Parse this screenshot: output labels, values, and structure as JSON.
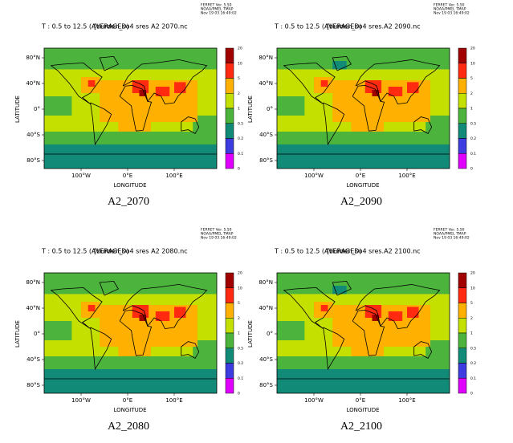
{
  "stamp": [
    "FERRET Ver. 5.50",
    "NOAA/PMEL TMAP",
    "Nov 19 03 16:49:02"
  ],
  "axes": {
    "y_label": "LATITUDE",
    "x_label": "LONGITUDE",
    "y_ticks": [
      {
        "value": 80,
        "label": "80°N"
      },
      {
        "value": 40,
        "label": "40°N"
      },
      {
        "value": 0,
        "label": "0°"
      },
      {
        "value": -40,
        "label": "40°S"
      },
      {
        "value": -80,
        "label": "80°S"
      }
    ],
    "x_ticks": [
      {
        "value": -100,
        "label": "100°W"
      },
      {
        "value": 0,
        "label": "0°E"
      },
      {
        "value": 100,
        "label": "100°E"
      }
    ]
  },
  "colorbar": {
    "levels": [
      20,
      10,
      5,
      2,
      1,
      0.5,
      0.2,
      0.1,
      0
    ],
    "colors": [
      "#a00000",
      "#ff2a10",
      "#ffb000",
      "#c4e000",
      "#4cb43c",
      "#128a78",
      "#3c3ce0",
      "#e000ff"
    ]
  },
  "panels": [
    {
      "title": "T : 0.5 to 12.5 (AVERAGED)",
      "file": "[burden_so4 sres A2 2070.nc",
      "caption": "A2_2070"
    },
    {
      "title": "T : 0.5 to 12.5 (AVERAGED)",
      "file": "[burden_so4 sres.A2 2090.nc",
      "caption": "A2_2090"
    },
    {
      "title": "T : 0.5 to 12.5 (AVERAGED)",
      "file": "[burden_so4 sres A2 2080.nc",
      "caption": "A2_2080"
    },
    {
      "title": "T : 0.5 to 12.5 (AVERAGED)",
      "file": "[burden_so4 sres.A2 2100.nc",
      "caption": "A2_2100"
    }
  ]
}
